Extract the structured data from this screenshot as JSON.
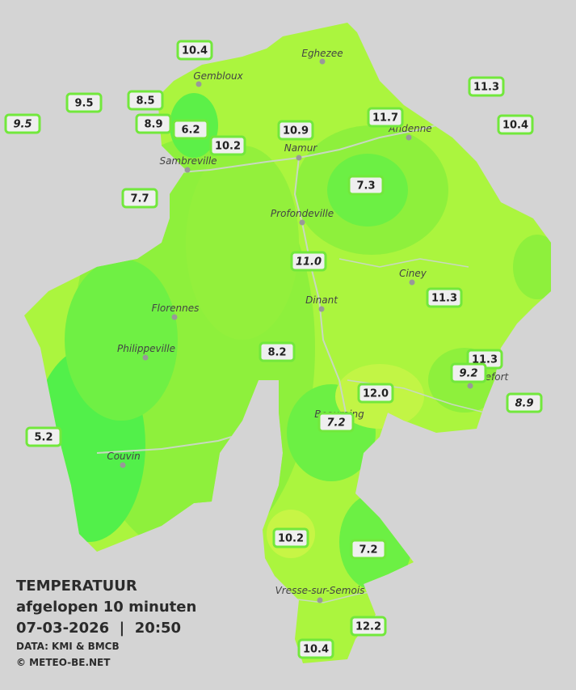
{
  "legend": {
    "title": "TEMPERATUUR",
    "period": "afgelopen 10 minuten",
    "datetime": "07-03-2026  |  20:50",
    "source": "DATA: KMI & BMCB",
    "copyright": "© METEO-BE.NET"
  },
  "cities": [
    "Eghezee",
    "Gembloux",
    "Andenne",
    "Namur",
    "Sambreville",
    "Profondeville",
    "Ciney",
    "Dinant",
    "Florennes",
    "Philippeville",
    "Rochefort",
    "Beauraing",
    "Couvin",
    "Vresse-sur-Semois"
  ],
  "stations": [
    {
      "label": "10.4"
    },
    {
      "label": "9.5"
    },
    {
      "label": "9.5",
      "italic": true
    },
    {
      "label": "8.5"
    },
    {
      "label": "8.9"
    },
    {
      "label": "6.2"
    },
    {
      "label": "10.2"
    },
    {
      "label": "10.9"
    },
    {
      "label": "11.7"
    },
    {
      "label": "11.3"
    },
    {
      "label": "10.4"
    },
    {
      "label": "7.3"
    },
    {
      "label": "7.7"
    },
    {
      "label": "11.0",
      "italic": true
    },
    {
      "label": "11.3"
    },
    {
      "label": "8.2"
    },
    {
      "label": "11.3"
    },
    {
      "label": "9.2",
      "italic": true
    },
    {
      "label": "12.0"
    },
    {
      "label": "8.9",
      "italic": true
    },
    {
      "label": "7.2",
      "italic": true
    },
    {
      "label": "5.2"
    },
    {
      "label": "10.2"
    },
    {
      "label": "7.2"
    },
    {
      "label": "12.2"
    },
    {
      "label": "10.4"
    }
  ]
}
